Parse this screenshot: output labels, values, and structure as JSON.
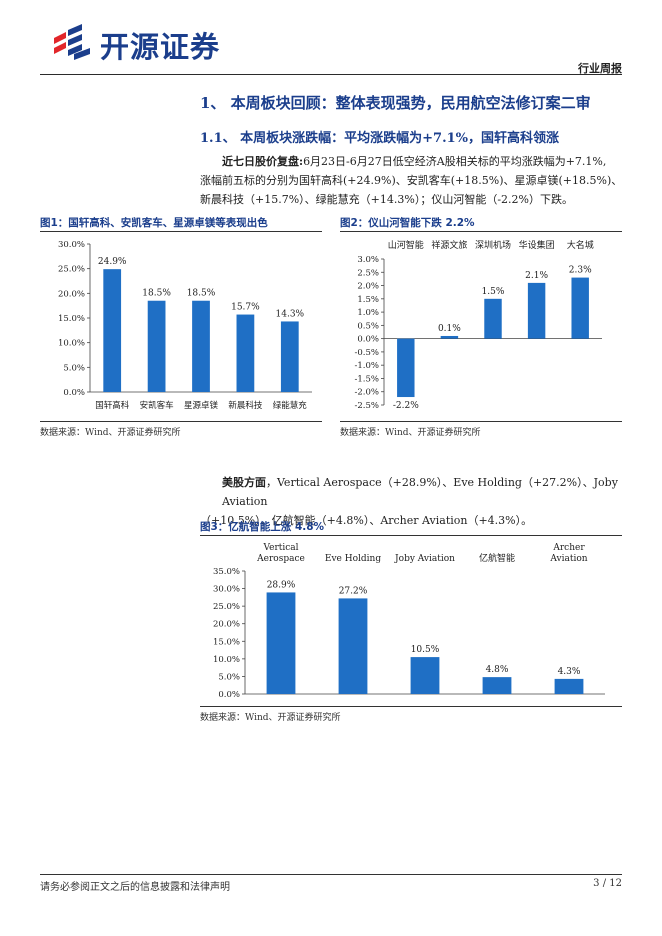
{
  "header": {
    "logo_text": "开源证券",
    "report_type": "行业周报"
  },
  "section": {
    "h1": "1、 本周板块回顾：整体表现强势，民用航空法修订案二审",
    "h2": "1.1、 本周板块涨跌幅：平均涨跌幅为+7.1%，国轩高科领涨"
  },
  "paragraph1": {
    "lead": "近七日股价复盘:",
    "line1": "6月23日-6月27日低空经济A股相关标的平均涨跌幅为+7.1%,",
    "line2": "涨幅前五标的分别为国轩高科(+24.9%)、安凯客车(+18.5%)、星源卓镁(+18.5%)、",
    "line3": "新晨科技（+15.7%）、绿能慧充（+14.3%）；仪山河智能（-2.2%）下跌。"
  },
  "paragraph2": {
    "lead": "美股方面",
    "line1": "，Vertical Aerospace（+28.9%）、Eve Holding（+27.2%）、Joby Aviation",
    "line2": "（+10.5%）、亿航智能（+4.8%）、Archer Aviation（+4.3%）。"
  },
  "figures": [
    {
      "title": "图1：国轩高科、安凯客车、星源卓镁等表现出色",
      "source": "数据来源：Wind、开源证券研究所"
    },
    {
      "title": "图2：仪山河智能下跌 2.2%",
      "source": "数据来源：Wind、开源证券研究所"
    },
    {
      "title": "图3：亿航智能上涨 4.8%",
      "source": "数据来源：Wind、开源证券研究所"
    }
  ],
  "chart_data": [
    {
      "type": "bar",
      "categories": [
        "国轩高科",
        "安凯客车",
        "星源卓镁",
        "新晨科技",
        "绿能慧充"
      ],
      "values": [
        24.9,
        18.5,
        18.5,
        15.7,
        14.3
      ],
      "value_labels": [
        "24.9%",
        "18.5%",
        "18.5%",
        "15.7%",
        "14.3%"
      ],
      "yticks": [
        "0.0%",
        "5.0%",
        "10.0%",
        "15.0%",
        "20.0%",
        "25.0%",
        "30.0%"
      ],
      "ylim": [
        0,
        30
      ],
      "color": "#1f6fc5",
      "category_position": "bottom",
      "grid": false
    },
    {
      "type": "bar",
      "categories": [
        "山河智能",
        "祥源文旅",
        "深圳机场",
        "华设集团",
        "大名城"
      ],
      "values": [
        -2.2,
        0.1,
        1.5,
        2.1,
        2.3
      ],
      "value_labels": [
        "-2.2%",
        "0.1%",
        "1.5%",
        "2.1%",
        "2.3%"
      ],
      "yticks": [
        "-2.5%",
        "-2.0%",
        "-1.5%",
        "-1.0%",
        "-0.5%",
        "0.0%",
        "0.5%",
        "1.0%",
        "1.5%",
        "2.0%",
        "2.5%",
        "3.0%"
      ],
      "ylim": [
        -2.5,
        3.0
      ],
      "color": "#1f6fc5",
      "category_position": "top",
      "grid": false
    },
    {
      "type": "bar",
      "categories": [
        "Vertical Aerospace",
        "Eve Holding",
        "Joby Aviation",
        "亿航智能",
        "Archer Aviation"
      ],
      "values": [
        28.9,
        27.2,
        10.5,
        4.8,
        4.3
      ],
      "value_labels": [
        "28.9%",
        "27.2%",
        "10.5%",
        "4.8%",
        "4.3%"
      ],
      "yticks": [
        "0.0%",
        "5.0%",
        "10.0%",
        "15.0%",
        "20.0%",
        "25.0%",
        "30.0%",
        "35.0%"
      ],
      "ylim": [
        0,
        35
      ],
      "color": "#1f6fc5",
      "category_position": "top",
      "grid": false
    }
  ],
  "footer": {
    "disclaimer": "请务必参阅正文之后的信息披露和法律声明",
    "page": "3 / 12"
  }
}
